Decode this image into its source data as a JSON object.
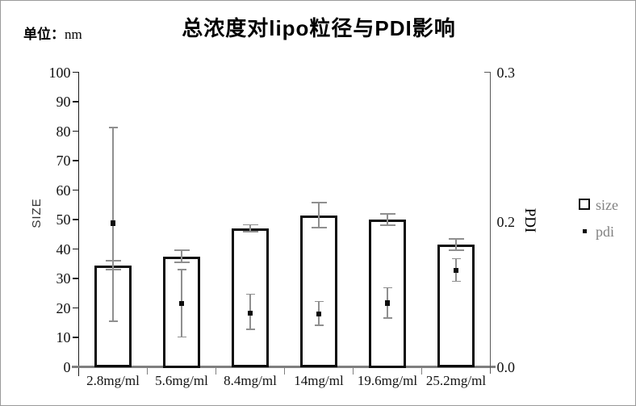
{
  "page": {
    "unit_prefix": "单位：",
    "unit_value": "nm"
  },
  "chart_data": {
    "type": "bar",
    "title": "总浓度对lipo粒径与PDI影响",
    "categories": [
      "2.8mg/ml",
      "5.6mg/ml",
      "8.4mg/ml",
      "14mg/ml",
      "19.6mg/ml",
      "25.2mg/ml"
    ],
    "series": [
      {
        "name": "size",
        "type": "bar",
        "axis": "left",
        "values": [
          34.5,
          37.5,
          47,
          51.5,
          50,
          41.5
        ],
        "errors": [
          1.5,
          2,
          1.2,
          4.3,
          2,
          2
        ]
      },
      {
        "name": "pdi",
        "type": "scatter",
        "axis": "right",
        "values": [
          0.198,
          0.087,
          0.074,
          0.073,
          0.088,
          0.133
        ],
        "errors_up": [
          0.065,
          0.047,
          0.026,
          0.017,
          0.021,
          0.016
        ],
        "errors_down": [
          0.135,
          0.046,
          0.022,
          0.016,
          0.021,
          0.015
        ]
      }
    ],
    "left_axis": {
      "label": "SIZE",
      "min": 0,
      "max": 100,
      "step": 10
    },
    "right_axis": {
      "label": "PDI",
      "ticks": [
        {
          "label": "0.0",
          "value": 0.0,
          "pos": 0.0
        },
        {
          "label": "0.2",
          "value": 0.2,
          "pos": 0.493
        },
        {
          "label": "0.3",
          "value": 0.3,
          "pos": 1.0
        }
      ]
    },
    "legend": [
      {
        "label": "size",
        "marker": "open-square"
      },
      {
        "label": "pdi",
        "marker": "filled-square"
      }
    ],
    "layout": {
      "grid": false,
      "legend_position": "right-middle"
    }
  },
  "colors": {
    "bar_border": "#0d0d0d",
    "bar_fill": "#ffffff",
    "error_bar": "#8f8f8f",
    "x_axis": "#7f7f7f",
    "left_axis": "#1a1a1a",
    "legend_text": "#808080",
    "background": "#ffffff"
  }
}
